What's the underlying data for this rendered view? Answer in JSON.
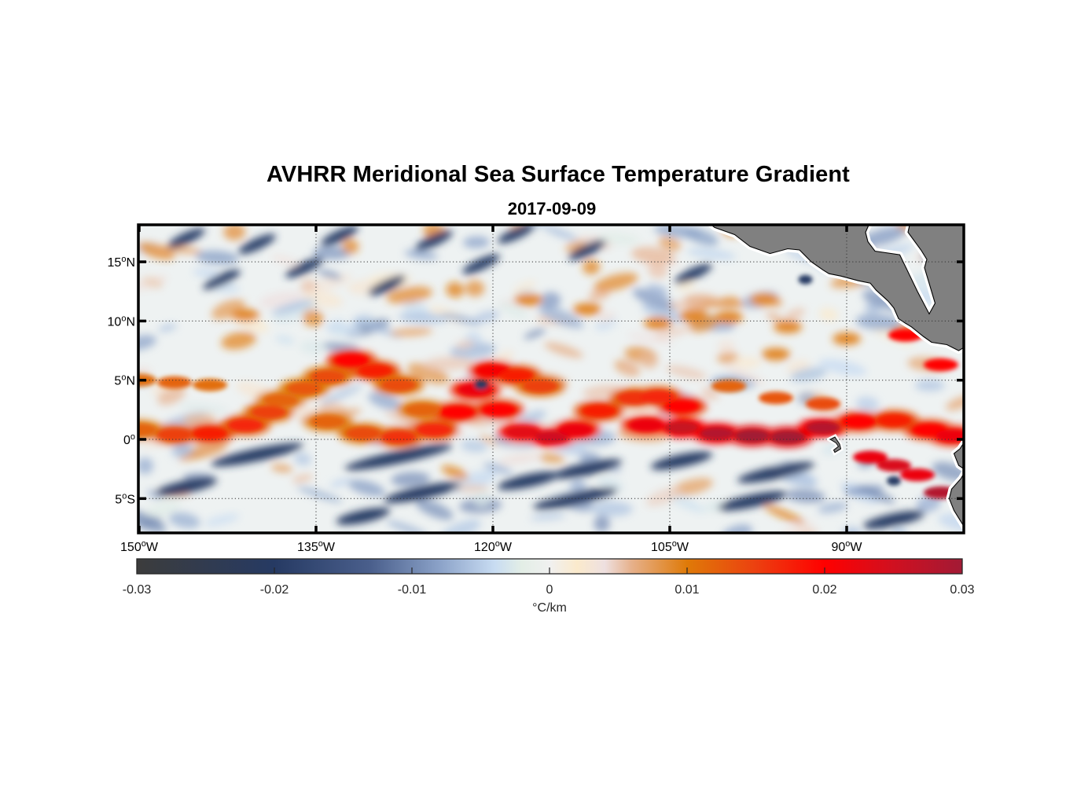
{
  "chart_data": {
    "type": "heatmap",
    "title": "AVHRR Meridional Sea Surface Temperature Gradient",
    "subtitle": "2017-09-09",
    "xlabel": "",
    "ylabel": "",
    "x_range_deg_lon": [
      -150,
      -80
    ],
    "y_range_deg_lat": [
      -8,
      18.2
    ],
    "x_ticks": [
      {
        "value": -150,
        "label": "150",
        "suffix": "W"
      },
      {
        "value": -135,
        "label": "135",
        "suffix": "W"
      },
      {
        "value": -120,
        "label": "120",
        "suffix": "W"
      },
      {
        "value": -105,
        "label": "105",
        "suffix": "W"
      },
      {
        "value": -90,
        "label": "90",
        "suffix": "W"
      }
    ],
    "y_ticks": [
      {
        "value": 15,
        "label": "15",
        "suffix": "N"
      },
      {
        "value": 10,
        "label": "10",
        "suffix": "N"
      },
      {
        "value": 5,
        "label": "5",
        "suffix": "N"
      },
      {
        "value": 0,
        "label": "0",
        "suffix": ""
      },
      {
        "value": -5,
        "label": "5",
        "suffix": "S"
      }
    ],
    "grid": true,
    "grid_style": "dotted",
    "land_color": "#808080",
    "colorbar": {
      "position": "bottom",
      "label": "°C/km",
      "range": [
        -0.03,
        0.03
      ],
      "ticks": [
        -0.03,
        -0.02,
        -0.01,
        0,
        0.01,
        0.02,
        0.03
      ],
      "tick_labels": [
        "-0.03",
        "-0.02",
        "-0.01",
        "0",
        "0.01",
        "0.02",
        "0.03"
      ],
      "colormap_stops": [
        {
          "v": -0.03,
          "c": "#3c3c3c"
        },
        {
          "v": -0.02,
          "c": "#263a63"
        },
        {
          "v": -0.013,
          "c": "#4a5f8c"
        },
        {
          "v": -0.008,
          "c": "#8ba2c8"
        },
        {
          "v": -0.004,
          "c": "#c8dcf2"
        },
        {
          "v": -0.002,
          "c": "#e3eee6"
        },
        {
          "v": 0,
          "c": "#f0f0f0"
        },
        {
          "v": 0.002,
          "c": "#fbeacc"
        },
        {
          "v": 0.004,
          "c": "#eee0e0"
        },
        {
          "v": 0.006,
          "c": "#e6b08a"
        },
        {
          "v": 0.01,
          "c": "#df7a08"
        },
        {
          "v": 0.015,
          "c": "#ec4010"
        },
        {
          "v": 0.02,
          "c": "#ff0000"
        },
        {
          "v": 0.025,
          "c": "#d01020"
        },
        {
          "v": 0.03,
          "c": "#a21a35"
        }
      ]
    },
    "features": [
      {
        "name": "Equatorial front (tropical instability waves)",
        "lat_range": [
          0,
          7
        ],
        "value_approx": 0.02,
        "description": "wavy band of strong positive gradient near 0-5N with crests near 140W and 125W"
      },
      {
        "name": "Strong positive band east of 105W",
        "lon_range": [
          -105,
          -80
        ],
        "lat_range": [
          -3,
          3
        ],
        "value_approx": 0.03
      },
      {
        "name": "Negative gradient patches south of equator",
        "lat_range": [
          -8,
          -1
        ],
        "value_approx": -0.02
      },
      {
        "name": "Central America landmass",
        "location": "upper right"
      },
      {
        "name": "Galapagos Islands",
        "location": "near 91W, 0.5S"
      },
      {
        "name": "South America coast",
        "location": "right edge, south of equator"
      }
    ]
  }
}
